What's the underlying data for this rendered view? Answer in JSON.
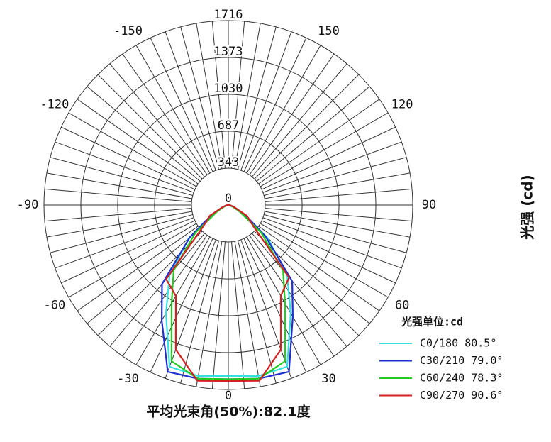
{
  "chart_data": {
    "type": "polar",
    "ylabel": "光强 (cd)",
    "caption": "平均光束角(50%):82.1度",
    "legend_title": "光强单位:cd",
    "legend": "lower right",
    "rlim": [
      0,
      1716
    ],
    "rticks": [
      0,
      343,
      687,
      1030,
      1373,
      1716
    ],
    "thetaticks": [
      -150,
      -120,
      -90,
      -60,
      -30,
      0,
      30,
      60,
      90,
      120,
      150
    ],
    "theta": [
      -90,
      -80,
      -70,
      -60,
      -50,
      -40,
      -30,
      -20,
      -10,
      0,
      10,
      20,
      30,
      40,
      50,
      60,
      70,
      80,
      90
    ],
    "series": [
      {
        "name": "C0/180 80.5°",
        "color": "#33e0e0",
        "values": [
          0,
          10,
          40,
          130,
          480,
          850,
          1162,
          1600,
          1615,
          1590,
          1615,
          1600,
          1162,
          850,
          480,
          130,
          40,
          10,
          0
        ]
      },
      {
        "name": "C30/210 79.0°",
        "color": "#1f2fd0",
        "values": [
          0,
          20,
          60,
          180,
          470,
          960,
          1240,
          1650,
          1640,
          1620,
          1640,
          1650,
          1200,
          925,
          450,
          180,
          60,
          20,
          0
        ]
      },
      {
        "name": "C60/240 78.3°",
        "color": "#22cc22",
        "values": [
          0,
          10,
          40,
          120,
          400,
          792,
          1056,
          1545,
          1640,
          1620,
          1640,
          1545,
          1056,
          792,
          400,
          120,
          40,
          10,
          0
        ]
      },
      {
        "name": "C90/270 90.6°",
        "color": "#d42020",
        "values": [
          0,
          20,
          60,
          200,
          300,
          900,
          977,
          1430,
          1660,
          1637,
          1660,
          1430,
          977,
          880,
          300,
          200,
          60,
          20,
          0
        ]
      }
    ]
  }
}
